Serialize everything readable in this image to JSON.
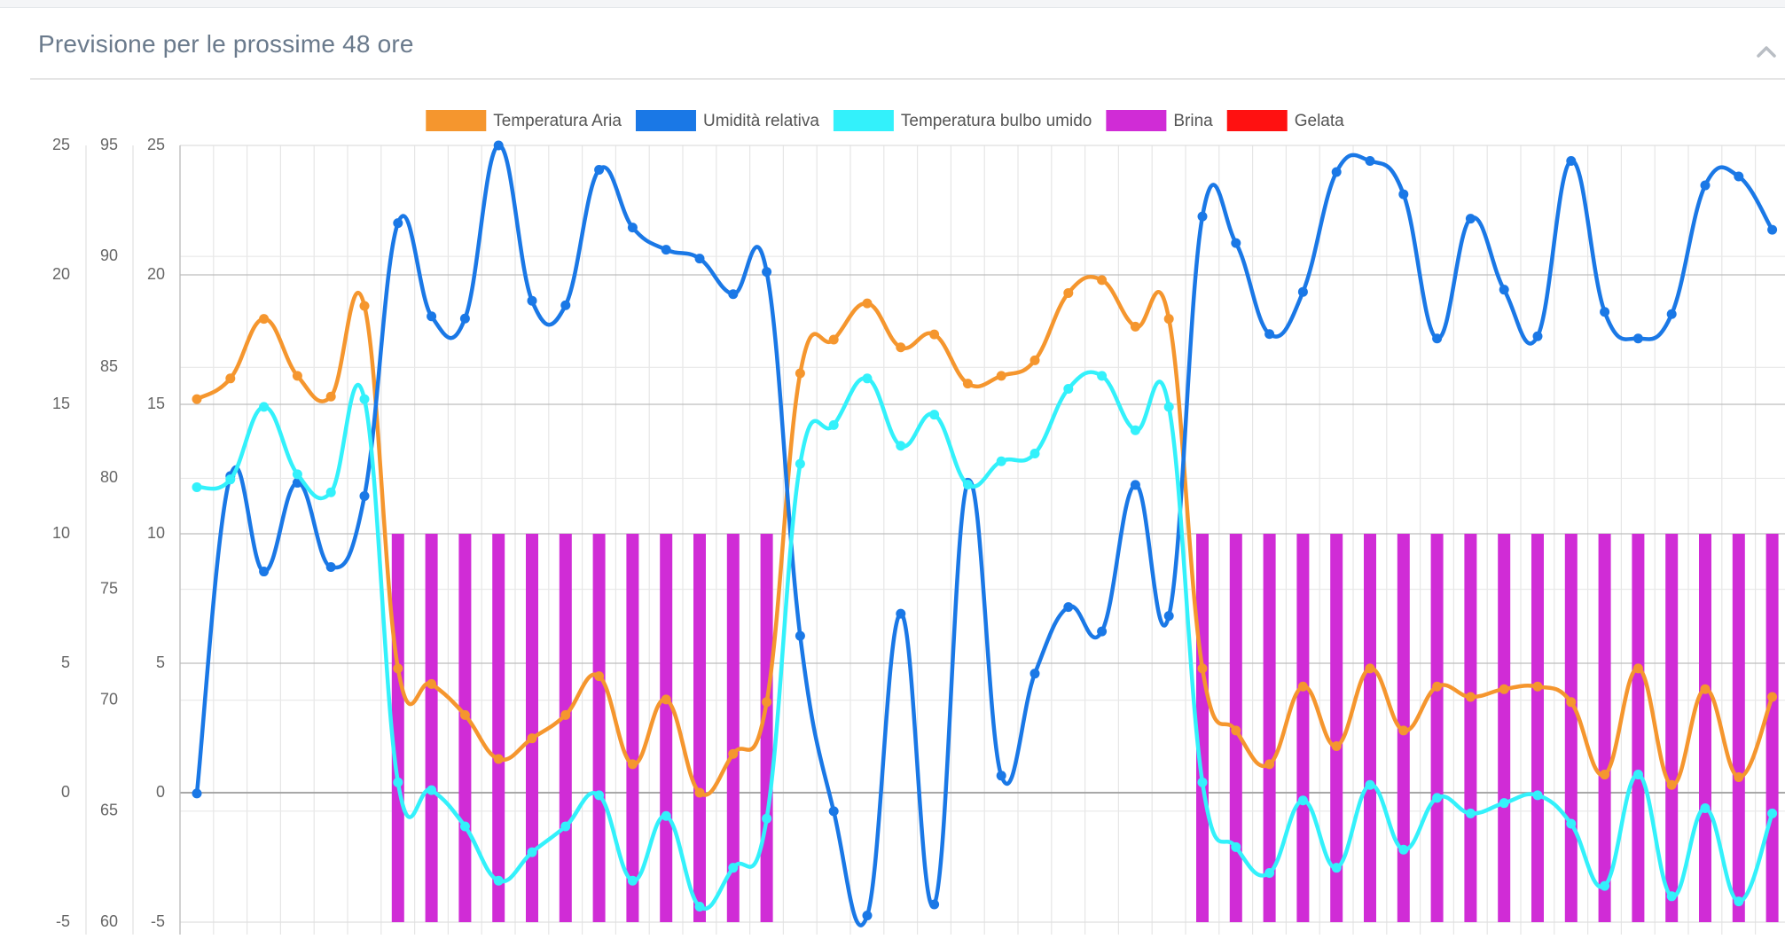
{
  "panel": {
    "title": "Previsione per le prossime 48 ore",
    "collapse_icon": "chevron-up-icon"
  },
  "chart_data": {
    "type": "line",
    "legend_position": "top-center",
    "grid": true,
    "series": [
      {
        "name": "Temperatura Aria",
        "color": "#f5962e",
        "axis": "temp",
        "kind": "line",
        "values": [
          15.2,
          16.0,
          18.3,
          16.1,
          15.3,
          18.8,
          4.8,
          4.2,
          3.0,
          1.3,
          2.1,
          3.0,
          4.5,
          1.1,
          3.6,
          0.0,
          1.5,
          3.5,
          16.2,
          17.5,
          18.9,
          17.2,
          17.7,
          15.8,
          16.1,
          16.7,
          19.3,
          19.8,
          18.0,
          18.3,
          4.8,
          2.4,
          1.1,
          4.1,
          1.8,
          4.8,
          2.4,
          4.1,
          3.7,
          4.0,
          4.1,
          3.5,
          0.7,
          4.8,
          0.3,
          4.0,
          0.6,
          3.7
        ]
      },
      {
        "name": "Umidità relativa",
        "color": "#1a78e6",
        "axis": "hum",
        "kind": "line",
        "values": [
          65.8,
          80.1,
          75.8,
          79.8,
          76.0,
          79.2,
          91.5,
          87.3,
          87.2,
          95.0,
          88.0,
          87.8,
          93.9,
          91.3,
          90.3,
          89.9,
          88.3,
          89.3,
          72.9,
          65.0,
          60.3,
          73.9,
          60.8,
          79.8,
          66.6,
          71.2,
          74.2,
          73.1,
          79.7,
          73.8,
          91.8,
          90.6,
          86.5,
          88.4,
          93.8,
          94.3,
          92.8,
          86.3,
          91.7,
          88.5,
          86.4,
          94.3,
          87.5,
          86.3,
          87.4,
          93.2,
          93.6,
          91.2
        ]
      },
      {
        "name": "Temperatura bulbo umido",
        "color": "#33f1fb",
        "axis": "temp",
        "kind": "line",
        "values": [
          11.8,
          12.1,
          14.9,
          12.3,
          11.6,
          15.2,
          0.4,
          0.1,
          -1.3,
          -3.4,
          -2.3,
          -1.3,
          -0.1,
          -3.4,
          -0.9,
          -4.4,
          -2.9,
          -1.0,
          12.7,
          14.2,
          16.0,
          13.4,
          14.6,
          11.9,
          12.8,
          13.1,
          15.6,
          16.1,
          14.0,
          14.9,
          0.4,
          -2.1,
          -3.1,
          -0.3,
          -2.9,
          0.3,
          -2.2,
          -0.2,
          -0.8,
          -0.4,
          -0.1,
          -1.2,
          -3.6,
          0.7,
          -4.0,
          -0.6,
          -4.2,
          -0.8
        ]
      },
      {
        "name": "Brina",
        "color": "#d02cd6",
        "axis": "temp",
        "kind": "bar",
        "values": [
          0,
          0,
          0,
          0,
          0,
          0,
          10,
          10,
          10,
          10,
          10,
          10,
          10,
          10,
          10,
          10,
          10,
          10,
          0,
          0,
          0,
          0,
          0,
          0,
          0,
          0,
          0,
          0,
          0,
          0,
          10,
          10,
          10,
          10,
          10,
          10,
          10,
          10,
          10,
          10,
          10,
          10,
          10,
          10,
          10,
          10,
          10,
          10
        ]
      },
      {
        "name": "Gelata",
        "color": "#ff1111",
        "axis": "temp",
        "kind": "bar",
        "values": [
          0,
          0,
          0,
          0,
          0,
          0,
          0,
          0,
          0,
          0,
          0,
          0,
          0,
          0,
          0,
          0,
          0,
          0,
          0,
          0,
          0,
          0,
          0,
          0,
          0,
          0,
          0,
          0,
          0,
          0,
          0,
          0,
          0,
          0,
          0,
          0,
          0,
          0,
          0,
          0,
          0,
          0,
          0,
          0,
          0,
          0,
          0,
          0
        ]
      }
    ],
    "axes": {
      "temp": {
        "ylim": [
          -5,
          25
        ],
        "ticks": [
          "25",
          "20",
          "15",
          "10",
          "5",
          "0",
          "-5"
        ]
      },
      "hum": {
        "ylim": [
          60,
          95
        ],
        "ticks": [
          "95",
          "90",
          "85",
          "80",
          "75",
          "70",
          "65",
          "60"
        ]
      }
    }
  }
}
